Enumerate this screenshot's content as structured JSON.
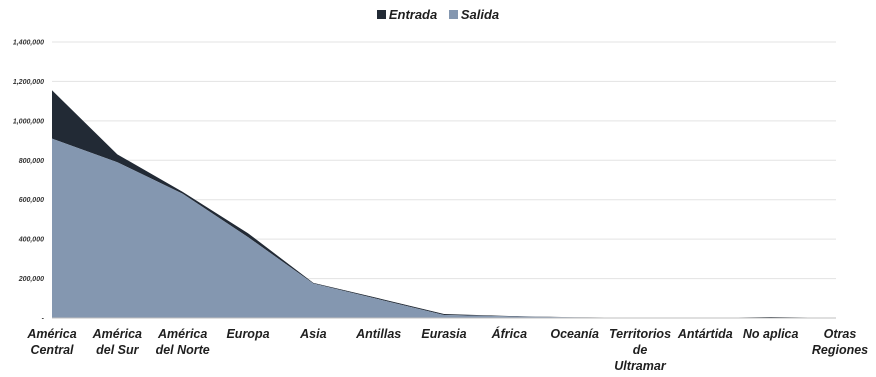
{
  "chart_data": {
    "type": "area",
    "stacked": true,
    "categories": [
      [
        "América",
        "Central"
      ],
      [
        "América",
        "del Sur"
      ],
      [
        "América",
        "del Norte"
      ],
      [
        "Europa"
      ],
      [
        "Asia"
      ],
      [
        "Antillas"
      ],
      [
        "Eurasia"
      ],
      [
        "África"
      ],
      [
        "Oceanía"
      ],
      [
        "Territorios",
        "de",
        "Ultramar"
      ],
      [
        "Antártida"
      ],
      [
        "No aplica"
      ],
      [
        "Otras",
        "Regiones"
      ]
    ],
    "series": [
      {
        "name": "Salida",
        "values": [
          910000,
          790000,
          630000,
          410000,
          175000,
          95000,
          15000,
          8000,
          3000,
          500,
          200,
          2000,
          500
        ]
      },
      {
        "name": "Entrada",
        "values": [
          245000,
          40000,
          10000,
          20000,
          3000,
          5000,
          5000,
          2000,
          1000,
          300,
          100,
          3000,
          300
        ]
      }
    ],
    "yticks": [
      "-",
      "200,000",
      "400,000",
      "600,000",
      "800,000",
      "1,000,000",
      "1,200,000",
      "1,400,000"
    ],
    "ylim": [
      0,
      1400000
    ],
    "grid": true,
    "legend_position": "top",
    "colors": {
      "Salida": "#8497b0",
      "Entrada": "#222a35",
      "grid": "#e3e3e3",
      "axis": "#bfbfbf"
    }
  }
}
